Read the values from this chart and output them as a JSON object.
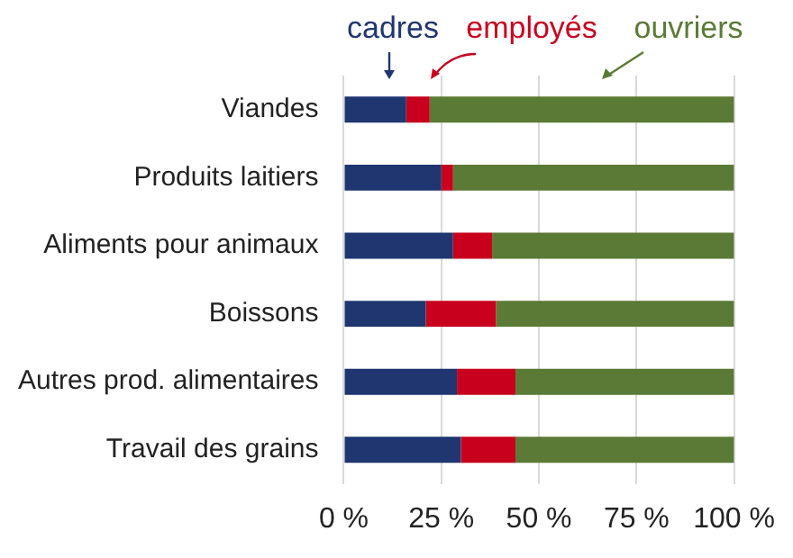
{
  "chart_data": {
    "type": "bar",
    "orientation": "horizontal",
    "stacked": true,
    "categories": [
      "Viandes",
      "Produits laitiers",
      "Aliments pour animaux",
      "Boissons",
      "Autres prod. alimentaires",
      "Travail des grains"
    ],
    "series": [
      {
        "name": "cadres",
        "color": "#1f3670",
        "values": [
          16,
          25,
          28,
          21,
          29,
          30
        ]
      },
      {
        "name": "employés",
        "color": "#c8001e",
        "values": [
          6,
          3,
          10,
          18,
          15,
          14
        ]
      },
      {
        "name": "ouvriers",
        "color": "#5a7a35",
        "values": [
          78,
          72,
          62,
          61,
          56,
          56
        ]
      }
    ],
    "xlim": [
      0,
      100
    ],
    "xticks": [
      {
        "value": 0,
        "label": "0 %"
      },
      {
        "value": 25,
        "label": "25 %"
      },
      {
        "value": 50,
        "label": "50 %"
      },
      {
        "value": 75,
        "label": "75 %"
      },
      {
        "value": 100,
        "label": "100 %"
      }
    ],
    "grid": "x",
    "legend": "top"
  }
}
